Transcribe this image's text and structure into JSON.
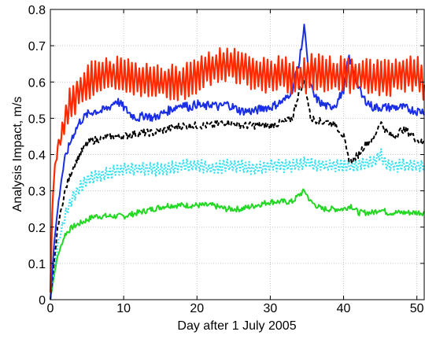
{
  "chart_data": {
    "type": "line",
    "title": "",
    "xlabel": "Day after 1 July 2005",
    "ylabel": "Analysis Impact, m/s",
    "xlim": [
      0,
      51
    ],
    "ylim": [
      0,
      0.8
    ],
    "xticks": [
      0,
      10,
      20,
      30,
      40,
      50
    ],
    "yticks": [
      0,
      0.1,
      0.2,
      0.3,
      0.4,
      0.5,
      0.6,
      0.7,
      0.8
    ],
    "xtick_labels": [
      "0",
      "10",
      "20",
      "30",
      "40",
      "50"
    ],
    "ytick_labels": [
      "0",
      "0.1",
      "0.2",
      "0.3",
      "0.4",
      "0.5",
      "0.6",
      "0.7",
      "0.8"
    ],
    "grid": true,
    "legend": "none",
    "series": [
      {
        "color": "#ff2a00",
        "style": "solid",
        "values": [
          [
            0,
            0.02
          ],
          [
            0.3,
            0.28
          ],
          [
            0.6,
            0.36
          ],
          [
            1.0,
            0.42
          ],
          [
            1.5,
            0.45
          ],
          [
            2,
            0.5
          ],
          [
            3,
            0.55
          ],
          [
            4,
            0.58
          ],
          [
            5,
            0.6
          ],
          [
            6,
            0.61
          ],
          [
            8,
            0.62
          ],
          [
            10,
            0.62
          ],
          [
            12,
            0.61
          ],
          [
            15,
            0.6
          ],
          [
            18,
            0.6
          ],
          [
            20,
            0.62
          ],
          [
            22,
            0.64
          ],
          [
            24,
            0.65
          ],
          [
            26,
            0.64
          ],
          [
            28,
            0.62
          ],
          [
            30,
            0.62
          ],
          [
            32,
            0.62
          ],
          [
            34,
            0.61
          ],
          [
            36,
            0.63
          ],
          [
            38,
            0.62
          ],
          [
            40,
            0.62
          ],
          [
            42,
            0.62
          ],
          [
            44,
            0.61
          ],
          [
            46,
            0.61
          ],
          [
            48,
            0.62
          ],
          [
            50,
            0.62
          ],
          [
            51,
            0.6
          ]
        ],
        "oscillation": 0.04
      },
      {
        "color": "#1a2ee6",
        "style": "solid",
        "values": [
          [
            0,
            0.0
          ],
          [
            0.5,
            0.15
          ],
          [
            1,
            0.25
          ],
          [
            1.5,
            0.33
          ],
          [
            2,
            0.39
          ],
          [
            3,
            0.45
          ],
          [
            4,
            0.49
          ],
          [
            5,
            0.51
          ],
          [
            6,
            0.52
          ],
          [
            7,
            0.52
          ],
          [
            8,
            0.53
          ],
          [
            9,
            0.55
          ],
          [
            10,
            0.53
          ],
          [
            11,
            0.51
          ],
          [
            12,
            0.5
          ],
          [
            13,
            0.51
          ],
          [
            14,
            0.5
          ],
          [
            15,
            0.51
          ],
          [
            16,
            0.52
          ],
          [
            17,
            0.53
          ],
          [
            18,
            0.54
          ],
          [
            19,
            0.53
          ],
          [
            20,
            0.54
          ],
          [
            21,
            0.53
          ],
          [
            22,
            0.54
          ],
          [
            23,
            0.53
          ],
          [
            24,
            0.54
          ],
          [
            25,
            0.53
          ],
          [
            26,
            0.52
          ],
          [
            27,
            0.52
          ],
          [
            28,
            0.52
          ],
          [
            29,
            0.53
          ],
          [
            30,
            0.53
          ],
          [
            31,
            0.54
          ],
          [
            32,
            0.55
          ],
          [
            33,
            0.58
          ],
          [
            34,
            0.66
          ],
          [
            34.7,
            0.76
          ],
          [
            35.3,
            0.6
          ],
          [
            36,
            0.56
          ],
          [
            37,
            0.54
          ],
          [
            38,
            0.53
          ],
          [
            39,
            0.54
          ],
          [
            40,
            0.58
          ],
          [
            40.7,
            0.67
          ],
          [
            41.5,
            0.62
          ],
          [
            42.5,
            0.56
          ],
          [
            44,
            0.53
          ],
          [
            46,
            0.53
          ],
          [
            48,
            0.53
          ],
          [
            50,
            0.52
          ],
          [
            51,
            0.52
          ]
        ],
        "jitter": 0.012
      },
      {
        "color": "#000000",
        "style": "dashed",
        "values": [
          [
            0,
            0.0
          ],
          [
            0.5,
            0.1
          ],
          [
            1,
            0.2
          ],
          [
            2,
            0.3
          ],
          [
            3,
            0.36
          ],
          [
            4,
            0.4
          ],
          [
            5,
            0.43
          ],
          [
            6,
            0.44
          ],
          [
            8,
            0.45
          ],
          [
            10,
            0.45
          ],
          [
            12,
            0.46
          ],
          [
            14,
            0.46
          ],
          [
            16,
            0.47
          ],
          [
            18,
            0.48
          ],
          [
            20,
            0.48
          ],
          [
            22,
            0.48
          ],
          [
            24,
            0.49
          ],
          [
            26,
            0.48
          ],
          [
            28,
            0.48
          ],
          [
            30,
            0.48
          ],
          [
            32,
            0.49
          ],
          [
            33,
            0.5
          ],
          [
            34,
            0.58
          ],
          [
            34.7,
            0.6
          ],
          [
            35.5,
            0.5
          ],
          [
            37,
            0.49
          ],
          [
            38,
            0.49
          ],
          [
            39,
            0.48
          ],
          [
            40,
            0.45
          ],
          [
            40.5,
            0.4
          ],
          [
            41,
            0.38
          ],
          [
            42,
            0.4
          ],
          [
            43,
            0.43
          ],
          [
            44,
            0.44
          ],
          [
            45,
            0.49
          ],
          [
            46,
            0.46
          ],
          [
            47,
            0.45
          ],
          [
            48,
            0.47
          ],
          [
            49,
            0.46
          ],
          [
            50,
            0.44
          ],
          [
            51,
            0.43
          ]
        ],
        "jitter": 0.01
      },
      {
        "color": "#33e0f0",
        "style": "dotted",
        "values": [
          [
            0,
            0.0
          ],
          [
            0.5,
            0.08
          ],
          [
            1,
            0.15
          ],
          [
            2,
            0.23
          ],
          [
            3,
            0.28
          ],
          [
            4,
            0.31
          ],
          [
            5,
            0.33
          ],
          [
            6,
            0.34
          ],
          [
            8,
            0.35
          ],
          [
            10,
            0.36
          ],
          [
            12,
            0.36
          ],
          [
            15,
            0.36
          ],
          [
            18,
            0.37
          ],
          [
            20,
            0.37
          ],
          [
            22,
            0.36
          ],
          [
            24,
            0.37
          ],
          [
            26,
            0.37
          ],
          [
            28,
            0.36
          ],
          [
            30,
            0.37
          ],
          [
            32,
            0.37
          ],
          [
            34,
            0.37
          ],
          [
            35,
            0.38
          ],
          [
            36,
            0.37
          ],
          [
            38,
            0.37
          ],
          [
            40,
            0.37
          ],
          [
            42,
            0.37
          ],
          [
            44,
            0.38
          ],
          [
            45,
            0.4
          ],
          [
            46,
            0.37
          ],
          [
            48,
            0.37
          ],
          [
            50,
            0.37
          ],
          [
            51,
            0.37
          ]
        ],
        "oscillation": 0.015
      },
      {
        "color": "#22d822",
        "style": "solid",
        "values": [
          [
            0,
            0.0
          ],
          [
            0.3,
            0.04
          ],
          [
            0.7,
            0.09
          ],
          [
            1,
            0.12
          ],
          [
            1.5,
            0.15
          ],
          [
            2,
            0.18
          ],
          [
            3,
            0.2
          ],
          [
            4,
            0.21
          ],
          [
            5,
            0.22
          ],
          [
            6,
            0.23
          ],
          [
            8,
            0.23
          ],
          [
            10,
            0.23
          ],
          [
            12,
            0.24
          ],
          [
            14,
            0.25
          ],
          [
            16,
            0.26
          ],
          [
            18,
            0.26
          ],
          [
            20,
            0.26
          ],
          [
            22,
            0.26
          ],
          [
            24,
            0.25
          ],
          [
            26,
            0.25
          ],
          [
            28,
            0.26
          ],
          [
            30,
            0.27
          ],
          [
            32,
            0.27
          ],
          [
            33,
            0.27
          ],
          [
            34,
            0.29
          ],
          [
            34.7,
            0.3
          ],
          [
            35.5,
            0.27
          ],
          [
            37,
            0.25
          ],
          [
            39,
            0.25
          ],
          [
            40,
            0.25
          ],
          [
            41,
            0.26
          ],
          [
            42,
            0.24
          ],
          [
            44,
            0.24
          ],
          [
            45,
            0.25
          ],
          [
            46,
            0.24
          ],
          [
            48,
            0.24
          ],
          [
            50,
            0.24
          ],
          [
            51,
            0.24
          ]
        ],
        "jitter": 0.008
      }
    ]
  }
}
